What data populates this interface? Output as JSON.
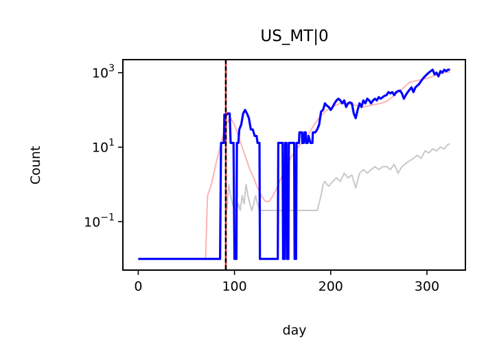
{
  "chart_data": {
    "type": "line",
    "title": "US_MT|0",
    "xlabel": "day",
    "ylabel": "Count",
    "xlim": [
      -16,
      340
    ],
    "ylim_log10": [
      -2.3,
      3.35
    ],
    "yscale": "log",
    "x_ticks": [
      0,
      100,
      200,
      300
    ],
    "y_ticks": [
      {
        "exp": -1,
        "label_base": "10",
        "label_exp": "−1"
      },
      {
        "exp": 1,
        "label_base": "10",
        "label_exp": "1"
      },
      {
        "exp": 3,
        "label_base": "10",
        "label_exp": "3"
      }
    ],
    "vlines": [
      {
        "x": 91,
        "color": "#e41a1c",
        "style": "solid"
      },
      {
        "x": 91,
        "color": "#000000",
        "style": "dashed"
      }
    ],
    "series": [
      {
        "color": "#ffb3b3",
        "points": [
          [
            0,
            0.01
          ],
          [
            70,
            0.01
          ],
          [
            72,
            0.5
          ],
          [
            76,
            1
          ],
          [
            80,
            3
          ],
          [
            84,
            8
          ],
          [
            88,
            20
          ],
          [
            92,
            45
          ],
          [
            96,
            60
          ],
          [
            100,
            40
          ],
          [
            104,
            20
          ],
          [
            108,
            10
          ],
          [
            112,
            5
          ],
          [
            116,
            2.5
          ],
          [
            120,
            1.5
          ],
          [
            124,
            0.8
          ],
          [
            128,
            0.5
          ],
          [
            132,
            0.35
          ],
          [
            136,
            0.35
          ],
          [
            140,
            0.5
          ],
          [
            144,
            0.8
          ],
          [
            148,
            1.4
          ],
          [
            152,
            2.5
          ],
          [
            156,
            4
          ],
          [
            160,
            6
          ],
          [
            166,
            10
          ],
          [
            172,
            15
          ],
          [
            178,
            25
          ],
          [
            184,
            45
          ],
          [
            190,
            70
          ],
          [
            196,
            100
          ],
          [
            204,
            130
          ],
          [
            210,
            150
          ],
          [
            216,
            150
          ],
          [
            222,
            140
          ],
          [
            228,
            130
          ],
          [
            234,
            120
          ],
          [
            240,
            130
          ],
          [
            246,
            140
          ],
          [
            252,
            150
          ],
          [
            258,
            170
          ],
          [
            264,
            220
          ],
          [
            270,
            300
          ],
          [
            276,
            400
          ],
          [
            282,
            550
          ],
          [
            288,
            600
          ],
          [
            294,
            650
          ],
          [
            300,
            700
          ],
          [
            306,
            800
          ],
          [
            312,
            900
          ],
          [
            318,
            1000
          ],
          [
            324,
            1050
          ]
        ]
      },
      {
        "color": "#c8c8c8",
        "points": [
          [
            92,
            0.2
          ],
          [
            94,
            1
          ],
          [
            96,
            0.5
          ],
          [
            98,
            0.3
          ],
          [
            100,
            0.2
          ],
          [
            102,
            0.2
          ],
          [
            104,
            0.3
          ],
          [
            106,
            0.2
          ],
          [
            108,
            0.5
          ],
          [
            110,
            0.3
          ],
          [
            112,
            1
          ],
          [
            114,
            0.5
          ],
          [
            116,
            0.3
          ],
          [
            118,
            0.2
          ],
          [
            120,
            0.3
          ],
          [
            122,
            0.5
          ],
          [
            124,
            0.3
          ],
          [
            126,
            0.2
          ],
          [
            128,
            0.2
          ],
          [
            130,
            0.2
          ],
          [
            140,
            0.2
          ],
          [
            160,
            0.2
          ],
          [
            180,
            0.2
          ],
          [
            186,
            0.2
          ],
          [
            190,
            0.5
          ],
          [
            192,
            1
          ],
          [
            194,
            1.2
          ],
          [
            196,
            1
          ],
          [
            198,
            0.9
          ],
          [
            202,
            1.2
          ],
          [
            206,
            1.5
          ],
          [
            210,
            1.2
          ],
          [
            214,
            2
          ],
          [
            218,
            1.5
          ],
          [
            222,
            1.8
          ],
          [
            226,
            0.8
          ],
          [
            230,
            2
          ],
          [
            234,
            2.5
          ],
          [
            238,
            2
          ],
          [
            242,
            2.5
          ],
          [
            246,
            3
          ],
          [
            250,
            2.5
          ],
          [
            254,
            3
          ],
          [
            258,
            3
          ],
          [
            262,
            2.5
          ],
          [
            266,
            3.5
          ],
          [
            270,
            2
          ],
          [
            274,
            3
          ],
          [
            280,
            4
          ],
          [
            286,
            5
          ],
          [
            290,
            6
          ],
          [
            294,
            5
          ],
          [
            298,
            8
          ],
          [
            302,
            7
          ],
          [
            306,
            9
          ],
          [
            310,
            8
          ],
          [
            314,
            10
          ],
          [
            318,
            9
          ],
          [
            322,
            12
          ],
          [
            324,
            12
          ]
        ]
      },
      {
        "color": "#0000ff",
        "points": [
          [
            0,
            0.01
          ],
          [
            85,
            0.01
          ],
          [
            86,
            13
          ],
          [
            89,
            13
          ],
          [
            89.5,
            75
          ],
          [
            92,
            75
          ],
          [
            93,
            80
          ],
          [
            95,
            80
          ],
          [
            96,
            13
          ],
          [
            99,
            13
          ],
          [
            100,
            0.01
          ],
          [
            102,
            0.01
          ],
          [
            102.5,
            13
          ],
          [
            104,
            13
          ],
          [
            105,
            30
          ],
          [
            107,
            40
          ],
          [
            109,
            80
          ],
          [
            111,
            100
          ],
          [
            113,
            80
          ],
          [
            115,
            60
          ],
          [
            117,
            30
          ],
          [
            119,
            30
          ],
          [
            121,
            20
          ],
          [
            123,
            20
          ],
          [
            124,
            13
          ],
          [
            126,
            13
          ],
          [
            126.5,
            0.01
          ],
          [
            145,
            0.01
          ],
          [
            145.5,
            13
          ],
          [
            150,
            13
          ],
          [
            150.5,
            0.01
          ],
          [
            152,
            0.01
          ],
          [
            152.5,
            13
          ],
          [
            154,
            13
          ],
          [
            154.5,
            0.01
          ],
          [
            156,
            0.01
          ],
          [
            156.5,
            13
          ],
          [
            162,
            13
          ],
          [
            162.5,
            0.01
          ],
          [
            164,
            0.01
          ],
          [
            164.5,
            13
          ],
          [
            167,
            13
          ],
          [
            167.5,
            25
          ],
          [
            170,
            25
          ],
          [
            170.5,
            13
          ],
          [
            172,
            13
          ],
          [
            172.5,
            25
          ],
          [
            174,
            25
          ],
          [
            174.5,
            13
          ],
          [
            176,
            13
          ],
          [
            177,
            20
          ],
          [
            179,
            13
          ],
          [
            181,
            13
          ],
          [
            181.5,
            25
          ],
          [
            184,
            25
          ],
          [
            186,
            30
          ],
          [
            188,
            40
          ],
          [
            190,
            90
          ],
          [
            192,
            100
          ],
          [
            194,
            150
          ],
          [
            196,
            130
          ],
          [
            198,
            120
          ],
          [
            200,
            100
          ],
          [
            202,
            120
          ],
          [
            204,
            150
          ],
          [
            206,
            180
          ],
          [
            208,
            200
          ],
          [
            210,
            180
          ],
          [
            212,
            150
          ],
          [
            214,
            180
          ],
          [
            216,
            120
          ],
          [
            218,
            150
          ],
          [
            220,
            160
          ],
          [
            222,
            150
          ],
          [
            224,
            80
          ],
          [
            226,
            60
          ],
          [
            228,
            100
          ],
          [
            230,
            150
          ],
          [
            232,
            120
          ],
          [
            234,
            180
          ],
          [
            236,
            150
          ],
          [
            238,
            200
          ],
          [
            240,
            180
          ],
          [
            242,
            150
          ],
          [
            244,
            180
          ],
          [
            246,
            200
          ],
          [
            248,
            180
          ],
          [
            250,
            220
          ],
          [
            252,
            200
          ],
          [
            254,
            220
          ],
          [
            256,
            240
          ],
          [
            258,
            250
          ],
          [
            260,
            300
          ],
          [
            262,
            280
          ],
          [
            264,
            300
          ],
          [
            266,
            250
          ],
          [
            268,
            300
          ],
          [
            270,
            320
          ],
          [
            272,
            330
          ],
          [
            274,
            280
          ],
          [
            276,
            200
          ],
          [
            278,
            250
          ],
          [
            280,
            300
          ],
          [
            282,
            350
          ],
          [
            284,
            400
          ],
          [
            286,
            300
          ],
          [
            288,
            400
          ],
          [
            290,
            450
          ],
          [
            292,
            500
          ],
          [
            294,
            600
          ],
          [
            296,
            700
          ],
          [
            298,
            800
          ],
          [
            300,
            900
          ],
          [
            302,
            1000
          ],
          [
            304,
            1100
          ],
          [
            306,
            1200
          ],
          [
            308,
            900
          ],
          [
            310,
            1000
          ],
          [
            312,
            800
          ],
          [
            314,
            1100
          ],
          [
            316,
            1000
          ],
          [
            318,
            1200
          ],
          [
            320,
            1100
          ],
          [
            322,
            1200
          ],
          [
            324,
            1200
          ]
        ]
      }
    ]
  }
}
